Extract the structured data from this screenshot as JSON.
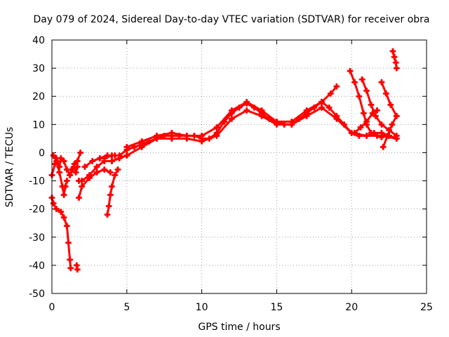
{
  "chart_data": {
    "type": "scatter",
    "title": "Day 079 of 2024, Sidereal Day-to-day VTEC variation (SDTVAR) for receiver obra",
    "xlabel": "GPS time / hours",
    "ylabel": "SDTVAR / TECUs",
    "xlim": [
      0,
      25
    ],
    "ylim": [
      -50,
      40
    ],
    "xticks": [
      0,
      5,
      10,
      15,
      20,
      25
    ],
    "yticks": [
      -50,
      -40,
      -30,
      -20,
      -10,
      0,
      10,
      20,
      30,
      40
    ],
    "grid": true,
    "marker": "+",
    "color": "#ff0000",
    "series": [
      {
        "name": "main",
        "points": [
          [
            3.5,
            -2
          ],
          [
            4,
            -1
          ],
          [
            4.5,
            -1
          ],
          [
            5,
            1
          ],
          [
            5.5,
            2
          ],
          [
            6,
            3
          ],
          [
            6.5,
            4
          ],
          [
            7,
            5
          ],
          [
            7.5,
            6
          ],
          [
            8,
            6
          ],
          [
            8.5,
            6
          ],
          [
            9,
            6
          ],
          [
            9.5,
            6
          ],
          [
            10,
            5
          ],
          [
            10.5,
            5
          ],
          [
            11,
            7
          ],
          [
            11.5,
            11
          ],
          [
            12,
            14
          ],
          [
            12.5,
            16
          ],
          [
            13,
            17.5
          ],
          [
            13.5,
            16
          ],
          [
            14,
            14
          ],
          [
            14.5,
            12
          ],
          [
            15,
            11
          ],
          [
            15.5,
            10
          ],
          [
            16,
            10
          ],
          [
            16.5,
            12
          ],
          [
            17,
            14
          ],
          [
            17.5,
            16
          ],
          [
            18,
            18
          ],
          [
            18.5,
            16
          ],
          [
            19,
            13
          ],
          [
            19.5,
            10
          ],
          [
            20,
            7
          ],
          [
            20.5,
            6
          ],
          [
            21,
            6
          ],
          [
            21.5,
            7
          ],
          [
            22,
            7
          ],
          [
            22.5,
            6
          ],
          [
            23,
            5
          ]
        ]
      },
      {
        "name": "upper",
        "points": [
          [
            5,
            2
          ],
          [
            6,
            4
          ],
          [
            7,
            6
          ],
          [
            8,
            7
          ],
          [
            9,
            6
          ],
          [
            10,
            6
          ],
          [
            11,
            9
          ],
          [
            12,
            15
          ],
          [
            13,
            18
          ],
          [
            14,
            15
          ],
          [
            15,
            11
          ],
          [
            16,
            11
          ],
          [
            17,
            15
          ],
          [
            18,
            18
          ],
          [
            18.6,
            21
          ],
          [
            19,
            23.5
          ]
        ]
      },
      {
        "name": "lower",
        "points": [
          [
            4,
            -3
          ],
          [
            5,
            -1
          ],
          [
            6,
            2
          ],
          [
            7,
            5
          ],
          [
            8,
            5
          ],
          [
            9,
            5
          ],
          [
            10,
            4
          ],
          [
            11,
            6
          ],
          [
            12,
            12
          ],
          [
            13,
            15
          ],
          [
            14,
            13
          ],
          [
            15,
            10
          ],
          [
            16,
            10
          ],
          [
            17,
            13
          ],
          [
            18,
            16
          ],
          [
            19,
            12
          ],
          [
            20,
            7
          ],
          [
            21,
            6
          ],
          [
            22,
            6
          ],
          [
            23,
            5
          ]
        ]
      },
      {
        "name": "morning-band",
        "points": [
          [
            1.8,
            -10
          ],
          [
            2,
            -10
          ],
          [
            2.5,
            -8
          ],
          [
            3,
            -5
          ],
          [
            3.5,
            -3
          ],
          [
            4,
            -3
          ],
          [
            4.5,
            -2
          ],
          [
            5,
            -1
          ]
        ]
      },
      {
        "name": "morning-band-2",
        "points": [
          [
            1.8,
            -16
          ],
          [
            2,
            -12
          ],
          [
            2.5,
            -9
          ],
          [
            3,
            -7
          ],
          [
            3.5,
            -6
          ],
          [
            3.9,
            -7
          ]
        ]
      },
      {
        "name": "morning-band-3",
        "points": [
          [
            2.2,
            -5
          ],
          [
            2.7,
            -3
          ],
          [
            3.2,
            -2
          ],
          [
            3.7,
            -1
          ],
          [
            4.2,
            -1
          ]
        ]
      },
      {
        "name": "descent-left",
        "points": [
          [
            0,
            -16
          ],
          [
            0.1,
            -18
          ],
          [
            0.3,
            -20
          ],
          [
            0.6,
            -21
          ],
          [
            0.8,
            -23
          ],
          [
            1,
            -26
          ],
          [
            1.1,
            -32
          ],
          [
            1.2,
            -38
          ],
          [
            1.25,
            -41
          ]
        ]
      },
      {
        "name": "left-cluster",
        "points": [
          [
            0,
            -8
          ],
          [
            0.2,
            -4
          ],
          [
            0.3,
            -2
          ],
          [
            0.5,
            -5
          ],
          [
            0.6,
            -2
          ],
          [
            0.8,
            -3
          ],
          [
            1,
            -6
          ],
          [
            1.2,
            -8
          ],
          [
            1.4,
            -6
          ],
          [
            1.5,
            -4
          ],
          [
            1.7,
            -3
          ],
          [
            1.9,
            0
          ]
        ]
      },
      {
        "name": "left-cluster-2",
        "points": [
          [
            0.1,
            -1
          ],
          [
            0.3,
            -3
          ],
          [
            0.5,
            -7
          ],
          [
            0.7,
            -12
          ],
          [
            0.8,
            -15
          ],
          [
            0.9,
            -12
          ],
          [
            1,
            -10
          ]
        ]
      },
      {
        "name": "left-cluster-3",
        "points": [
          [
            1.2,
            -8
          ],
          [
            1.3,
            -6
          ],
          [
            1.5,
            -5
          ],
          [
            1.6,
            -7
          ],
          [
            1.7,
            -5
          ]
        ]
      },
      {
        "name": "dip-4h",
        "points": [
          [
            3.7,
            -22
          ],
          [
            3.8,
            -19
          ],
          [
            3.9,
            -15
          ],
          [
            4,
            -12
          ],
          [
            4.2,
            -8
          ],
          [
            4.4,
            -6
          ]
        ]
      },
      {
        "name": "isolated-1.7h",
        "points": [
          [
            1.65,
            -40
          ],
          [
            1.7,
            -41.5
          ]
        ]
      },
      {
        "name": "tail-19.9",
        "points": [
          [
            19.9,
            29
          ],
          [
            20.2,
            25
          ],
          [
            20.5,
            20
          ],
          [
            20.8,
            14
          ],
          [
            21,
            10
          ],
          [
            21.3,
            7
          ],
          [
            21.7,
            6
          ],
          [
            22,
            5.5
          ]
        ]
      },
      {
        "name": "tail-20.7",
        "points": [
          [
            20.7,
            26
          ],
          [
            21,
            22
          ],
          [
            21.3,
            17
          ],
          [
            21.6,
            13
          ],
          [
            22,
            10
          ],
          [
            22.5,
            8
          ],
          [
            23,
            6
          ]
        ]
      },
      {
        "name": "tail-22.1",
        "points": [
          [
            22.1,
            2
          ],
          [
            22.4,
            6
          ],
          [
            22.7,
            10
          ],
          [
            23,
            13
          ]
        ]
      },
      {
        "name": "tail-22.0b",
        "points": [
          [
            22,
            25
          ],
          [
            22.3,
            21
          ],
          [
            22.6,
            17
          ],
          [
            23,
            13
          ]
        ]
      },
      {
        "name": "tail-21.7",
        "points": [
          [
            20.2,
            7
          ],
          [
            20.6,
            9
          ],
          [
            21,
            11
          ],
          [
            21.4,
            14
          ],
          [
            21.7,
            15
          ]
        ]
      },
      {
        "name": "tail-22.8",
        "points": [
          [
            22.75,
            36
          ],
          [
            22.85,
            34
          ],
          [
            22.95,
            32
          ],
          [
            23,
            30
          ]
        ]
      }
    ]
  }
}
